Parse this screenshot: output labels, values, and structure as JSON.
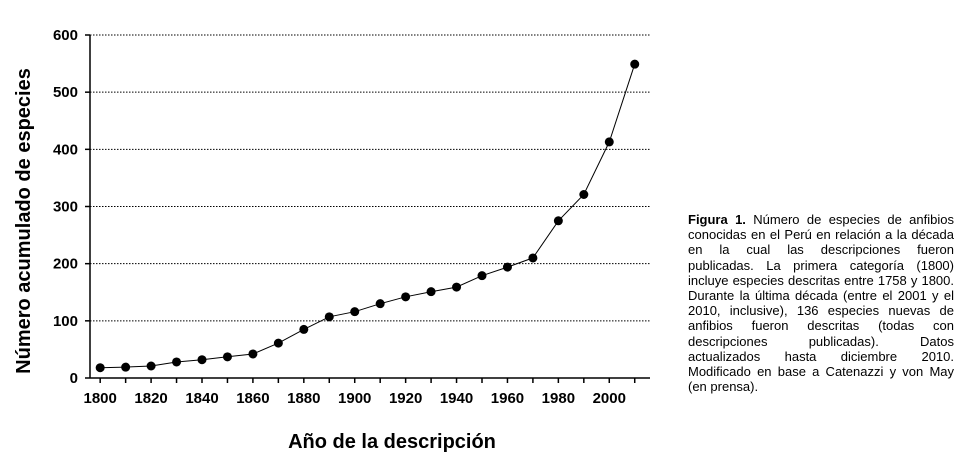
{
  "chart_data": {
    "type": "line",
    "xlabel": "Año de la descripción",
    "ylabel": "Número acumulado  de especies",
    "xlim": [
      1796,
      2016
    ],
    "ylim": [
      0,
      600
    ],
    "xticks": [
      1800,
      1820,
      1840,
      1860,
      1880,
      1900,
      1920,
      1940,
      1960,
      1980,
      2000
    ],
    "yticks": [
      0,
      100,
      200,
      300,
      400,
      500,
      600
    ],
    "grid": true,
    "legend": "none",
    "x": [
      1800,
      1810,
      1820,
      1830,
      1840,
      1850,
      1860,
      1870,
      1880,
      1890,
      1900,
      1910,
      1920,
      1930,
      1940,
      1950,
      1960,
      1970,
      1980,
      1990,
      2000,
      2010
    ],
    "values": [
      18,
      19,
      21,
      28,
      32,
      37,
      42,
      61,
      85,
      107,
      116,
      130,
      142,
      151,
      159,
      179,
      194,
      210,
      275,
      321,
      413,
      549
    ]
  },
  "caption": {
    "label": "Figura 1.",
    "text": " Número de especies de anfibios conocidas en el Perú en relación a la década en la cual las descripciones fueron publicadas. La primera categoría (1800) incluye especies descritas entre 1758 y 1800. Durante la última década (entre el 2001 y el 2010, inclusive), 136 especies nuevas de anfibios fueron descritas (todas con descripciones publicadas). Datos actualizados hasta diciembre 2010. Modificado en base a Catenazzi y von May (en prensa)."
  }
}
